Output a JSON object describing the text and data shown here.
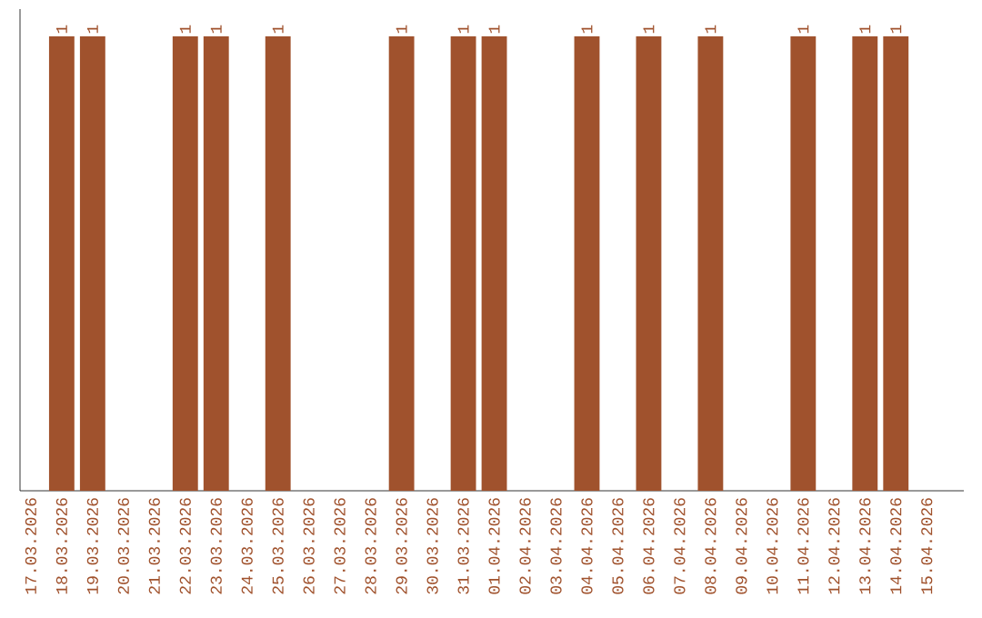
{
  "chart_data": {
    "type": "bar",
    "categories": [
      "17.03.2026",
      "18.03.2026",
      "19.03.2026",
      "20.03.2026",
      "21.03.2026",
      "22.03.2026",
      "23.03.2026",
      "24.03.2026",
      "25.03.2026",
      "26.03.2026",
      "27.03.2026",
      "28.03.2026",
      "29.03.2026",
      "30.03.2026",
      "31.03.2026",
      "01.04.2026",
      "02.04.2026",
      "03.04.2026",
      "04.04.2026",
      "05.04.2026",
      "06.04.2026",
      "07.04.2026",
      "08.04.2026",
      "09.04.2026",
      "10.04.2026",
      "11.04.2026",
      "12.04.2026",
      "13.04.2026",
      "14.04.2026",
      "15.04.2026"
    ],
    "values": [
      0,
      1,
      1,
      0,
      0,
      1,
      1,
      0,
      1,
      0,
      0,
      0,
      1,
      0,
      1,
      1,
      0,
      0,
      1,
      0,
      1,
      0,
      1,
      0,
      0,
      1,
      0,
      1,
      1,
      0
    ],
    "value_labels": [
      null,
      "1",
      "1",
      null,
      null,
      "1",
      "1",
      null,
      "1",
      null,
      null,
      null,
      "1",
      null,
      "1",
      "1",
      null,
      null,
      "1",
      null,
      "1",
      null,
      "1",
      null,
      null,
      "1",
      null,
      "1",
      "1",
      null
    ],
    "color": "#a0522d"
  }
}
